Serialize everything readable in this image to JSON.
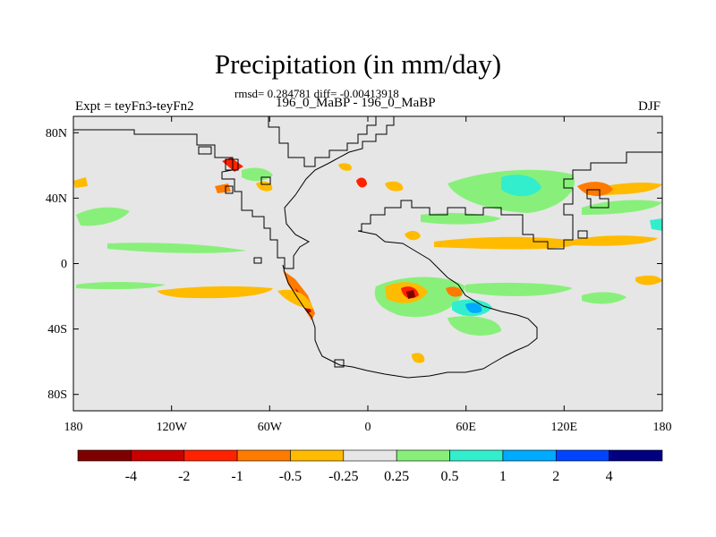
{
  "title": "Precipitation (in mm/day)",
  "stats": "rmsd= 0.284781 diff= -0.00413918",
  "period": "196_0_MaBP - 196_0_MaBP",
  "expt_label": "Expt = teyFn3-teyFn2",
  "season": "DJF",
  "map": {
    "background_color": "#e6e6e6",
    "longitude_ticks": [
      "180",
      "120W",
      "60W",
      "0",
      "60E",
      "120E",
      "180"
    ],
    "latitude_ticks": [
      "80N",
      "40N",
      "0",
      "40S",
      "80S"
    ]
  },
  "colorbar": {
    "colors": [
      "#7f0000",
      "#c80000",
      "#ff2200",
      "#ff7a00",
      "#ffbb00",
      "#e6e6e6",
      "#88f07a",
      "#33eecc",
      "#00aaff",
      "#0044ff",
      "#000080"
    ],
    "labels": [
      "-4",
      "-2",
      "-1",
      "-0.5",
      "-0.25",
      "0.25",
      "0.5",
      "1",
      "2",
      "4"
    ]
  }
}
